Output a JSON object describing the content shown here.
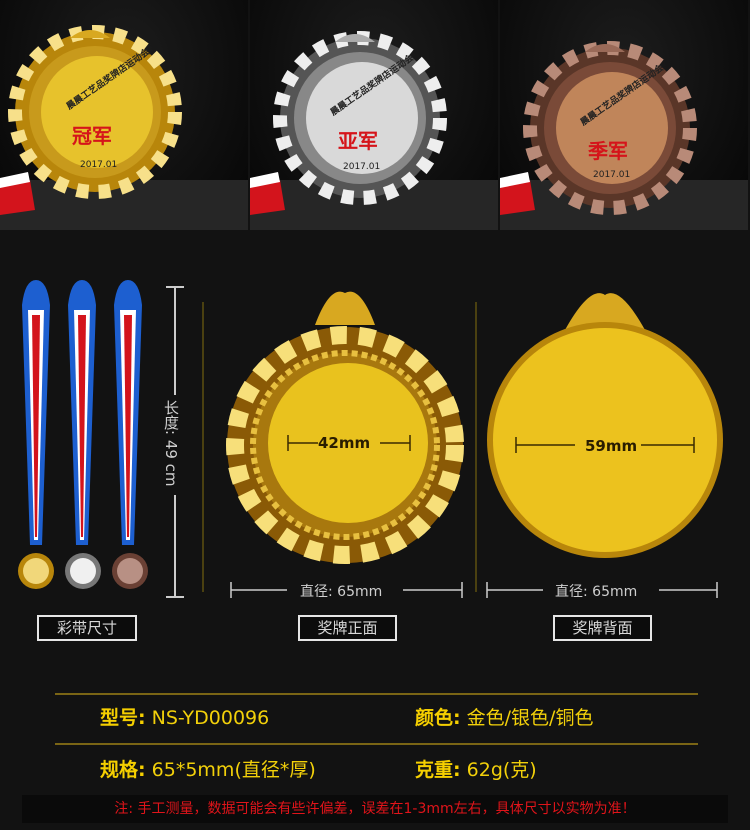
{
  "top_photos": [
    {
      "arc_text": "晨晨工艺品奖牌店运动会",
      "title": "冠军",
      "date": "2017.01",
      "finish": "gold",
      "color": "#e7c22c"
    },
    {
      "arc_text": "晨晨工艺品奖牌店运动会",
      "title": "亚军",
      "date": "2017.01",
      "finish": "silver",
      "color": "#d9d9d9"
    },
    {
      "arc_text": "晨晨工艺品奖牌店运动会",
      "title": "季军",
      "date": "2017.01",
      "finish": "bronze",
      "color": "#c0855a"
    }
  ],
  "ribbon": {
    "length_label": "长度: 49 cm",
    "caption": "彩带尺寸",
    "colors": [
      "#1d5fd0",
      "#ffffff",
      "#d3141c"
    ]
  },
  "front": {
    "inner_diameter": "42mm",
    "diameter": "直径: 65mm",
    "caption": "奖牌正面"
  },
  "back": {
    "inner_diameter": "59mm",
    "diameter": "直径: 65mm",
    "caption": "奖牌背面"
  },
  "specs": {
    "model_label": "型号:",
    "model_value": "NS-YD00096",
    "color_label": "颜色:",
    "color_value": "金色/银色/铜色",
    "size_label": "规格:",
    "size_value": "65*5mm(直径*厚)",
    "weight_label": "克重:",
    "weight_value": "62g(克)"
  },
  "note": "注: 手工测量，数据可能会有些许偏差，误差在1-3mm左右，具体尺寸以实物为准！"
}
